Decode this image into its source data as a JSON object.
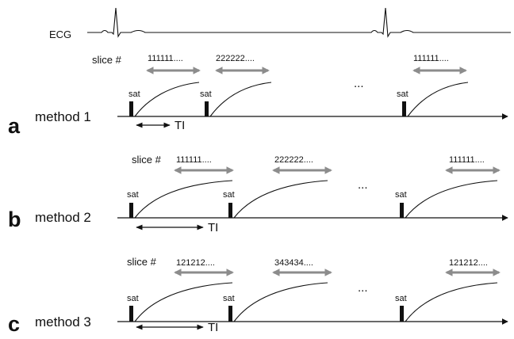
{
  "ecg_label": "ECG",
  "sat_label": "sat",
  "ti_label": "TI",
  "slice_label": "slice #",
  "ellipsis": "...",
  "colors": {
    "line": "#111111",
    "arrow_gray": "#8c8c8c"
  },
  "methods": [
    {
      "letter": "a",
      "name": "method 1",
      "slices": [
        "111111....",
        "222222....",
        "111111...."
      ]
    },
    {
      "letter": "b",
      "name": "method 2",
      "slices": [
        "111111....",
        "222222....",
        "111111...."
      ]
    },
    {
      "letter": "c",
      "name": "method 3",
      "slices": [
        "121212....",
        "343434....",
        "121212...."
      ]
    }
  ]
}
